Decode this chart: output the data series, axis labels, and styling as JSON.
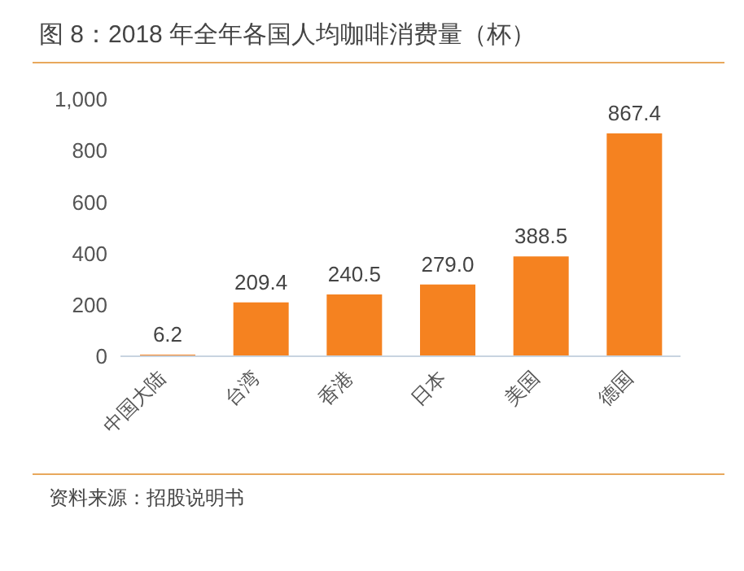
{
  "chart_data": {
    "type": "bar",
    "title": "图 8：2018 年全年各国人均咖啡消费量（杯）",
    "categories": [
      "中国大陆",
      "台湾",
      "香港",
      "日本",
      "美国",
      "德国"
    ],
    "values": [
      6.2,
      209.4,
      240.5,
      279.0,
      388.5,
      867.4
    ],
    "color": "#f58220",
    "value_labels": [
      "6.2",
      "209.4",
      "240.5",
      "279.0",
      "388.5",
      "867.4"
    ],
    "ylim": [
      0,
      1000
    ],
    "yticks": [
      0,
      200,
      400,
      600,
      800,
      {
        "value": 1000,
        "label": "1,000"
      }
    ],
    "grid": false,
    "annotations": [
      "资料来源：招股说明书"
    ]
  }
}
